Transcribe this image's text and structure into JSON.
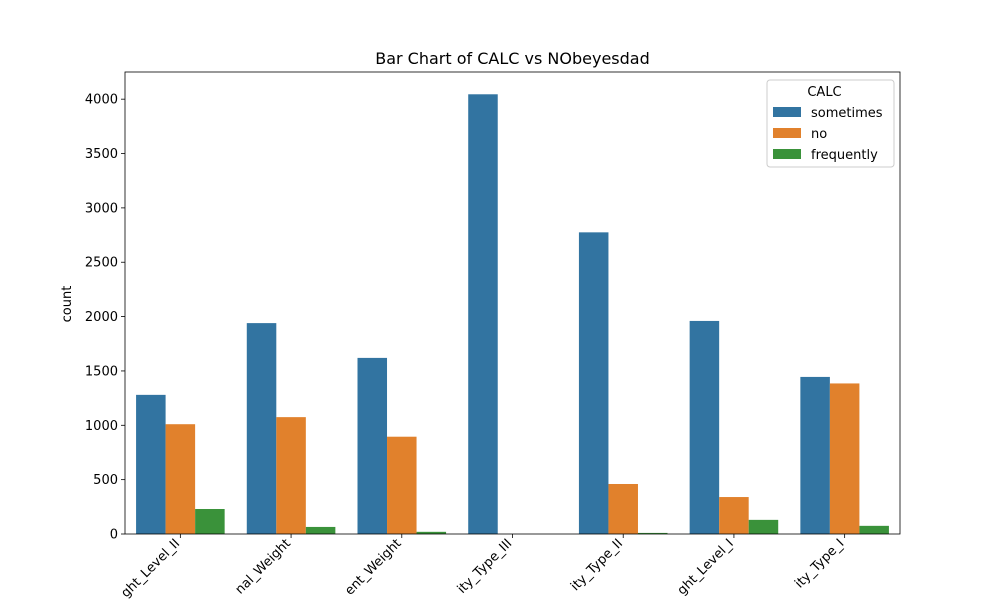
{
  "chart_data": {
    "type": "bar",
    "title": "Bar Chart of CALC vs NObeyesdad",
    "xlabel": "",
    "ylabel": "count",
    "ylim": [
      0,
      4250
    ],
    "yticks": [
      "0",
      "500",
      "1000",
      "1500",
      "2000",
      "2500",
      "3000",
      "3500",
      "4000"
    ],
    "grid": false,
    "legend": {
      "title": "CALC",
      "placement": "top-right"
    },
    "categories": [
      "ght_Level_II",
      "nal_Weight",
      "ent_Weight",
      "ity_Type_III",
      "ity_Type_II",
      "ght_Level_I",
      "ity_Type_I"
    ],
    "series": [
      {
        "name": "sometimes",
        "color": "#3274a1",
        "values": [
          1280,
          1940,
          1620,
          4045,
          2775,
          1960,
          1445
        ]
      },
      {
        "name": "no",
        "color": "#e1812c",
        "values": [
          1010,
          1075,
          895,
          0,
          460,
          340,
          1385
        ]
      },
      {
        "name": "frequently",
        "color": "#3a923a",
        "values": [
          230,
          65,
          20,
          0,
          10,
          130,
          75
        ]
      }
    ]
  }
}
